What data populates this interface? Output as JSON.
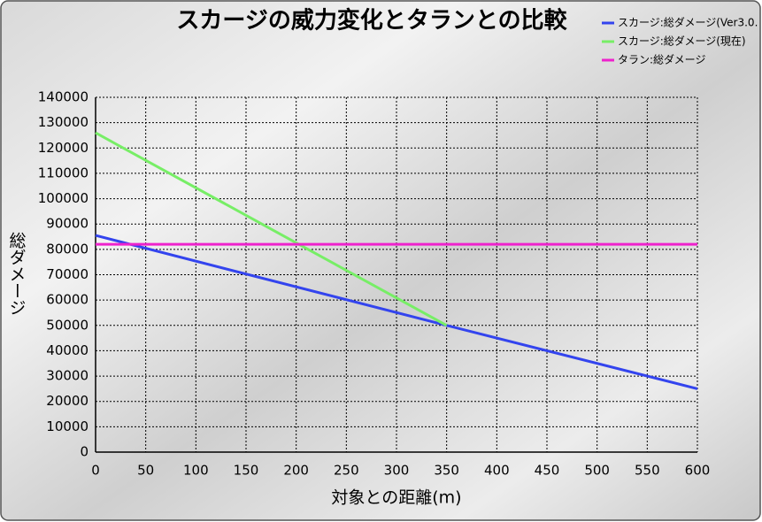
{
  "chart_data": {
    "type": "line",
    "title": "スカージの威力変化とタランとの比較",
    "x_label": "対象との距離(m)",
    "y_label": "総ダメージ",
    "x": [
      0,
      350,
      600
    ],
    "series": [
      {
        "name": "スカージ:総ダメージ(Ver3.0.",
        "color": "#3344ee",
        "values": [
          85500,
          50000,
          25000
        ]
      },
      {
        "name": "スカージ:総ダメージ(現在)",
        "color": "#77ee66",
        "values": [
          126000,
          50000,
          null
        ]
      },
      {
        "name": "タラン:総ダメージ",
        "color": "#ee22cc",
        "values": [
          82000,
          82000,
          82000
        ]
      }
    ],
    "xlim": [
      0,
      600
    ],
    "xticks": [
      0,
      50,
      100,
      150,
      200,
      250,
      300,
      350,
      400,
      450,
      500,
      550,
      600
    ],
    "ylim": [
      0,
      140000
    ],
    "yticks": [
      0,
      10000,
      20000,
      30000,
      40000,
      50000,
      60000,
      70000,
      80000,
      90000,
      100000,
      110000,
      120000,
      130000,
      140000
    ],
    "grid": true,
    "legend": "top-right"
  }
}
